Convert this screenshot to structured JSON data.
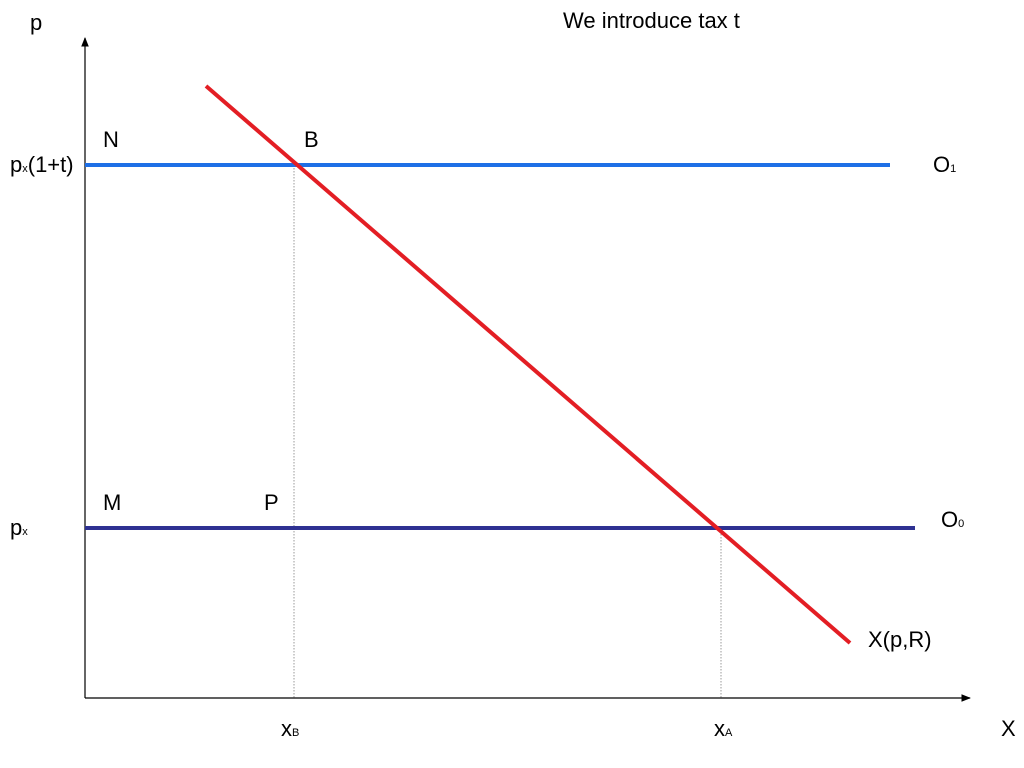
{
  "title": "We introduce tax t",
  "axes": {
    "y_label": "p",
    "x_label": "X"
  },
  "y_ticks": {
    "high": {
      "base": "p",
      "sub": "x",
      "rest": "(1+t)"
    },
    "low": {
      "base": "p",
      "sub": "x"
    }
  },
  "x_ticks": {
    "b": {
      "base": "x",
      "sub": "B"
    },
    "a": {
      "base": "x",
      "sub": "A"
    }
  },
  "points": {
    "n": "N",
    "b": "B",
    "m": "M",
    "p": "P"
  },
  "curves": {
    "o1": {
      "base": "O",
      "sub": "1",
      "color": "#1E6FE6"
    },
    "o0": {
      "base": "O",
      "sub": "0",
      "color": "#2E3192"
    },
    "demand": {
      "label": "X(p,R)",
      "color": "#E31E24"
    }
  }
}
